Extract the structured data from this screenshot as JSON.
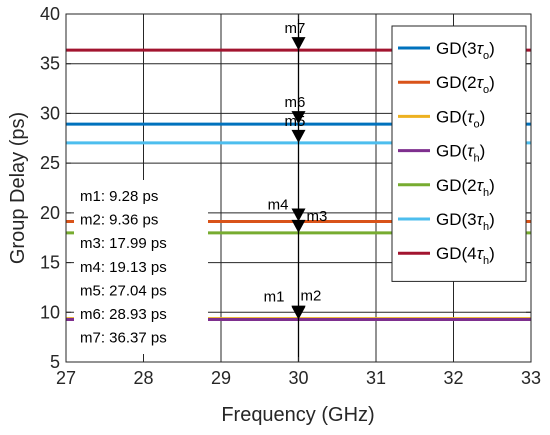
{
  "chart_data": {
    "type": "line",
    "xlabel": "Frequency (GHz)",
    "ylabel": "Group Delay (ps)",
    "xlim": [
      27,
      33
    ],
    "ylim": [
      5,
      40
    ],
    "xticks": [
      27,
      28,
      29,
      30,
      31,
      32,
      33
    ],
    "yticks": [
      5,
      10,
      15,
      20,
      25,
      30,
      35,
      40
    ],
    "grid": true,
    "legend_position": "top-right",
    "series": [
      {
        "name_main": "GD(3",
        "name_sym": "τ",
        "name_sub": "o",
        "name_end": ")",
        "color": "#0072BD",
        "x": [
          27,
          33
        ],
        "values": [
          28.93,
          28.93
        ]
      },
      {
        "name_main": "GD(2",
        "name_sym": "τ",
        "name_sub": "o",
        "name_end": ")",
        "color": "#D95319",
        "x": [
          27,
          33
        ],
        "values": [
          19.13,
          19.13
        ]
      },
      {
        "name_main": "GD(",
        "name_sym": "τ",
        "name_sub": "o",
        "name_end": ")",
        "color": "#EDB120",
        "x": [
          27,
          33
        ],
        "values": [
          9.36,
          9.36
        ]
      },
      {
        "name_main": "GD(",
        "name_sym": "τ",
        "name_sub": "h",
        "name_end": ")",
        "color": "#7E2F8E",
        "x": [
          27,
          33
        ],
        "values": [
          9.28,
          9.28
        ]
      },
      {
        "name_main": "GD(2",
        "name_sym": "τ",
        "name_sub": "h",
        "name_end": ")",
        "color": "#77AC30",
        "x": [
          27,
          33
        ],
        "values": [
          17.99,
          17.99
        ]
      },
      {
        "name_main": "GD(3",
        "name_sym": "τ",
        "name_sub": "h",
        "name_end": ")",
        "color": "#4DBEEE",
        "x": [
          27,
          33
        ],
        "values": [
          27.04,
          27.04
        ]
      },
      {
        "name_main": "GD(4",
        "name_sym": "τ",
        "name_sub": "h",
        "name_end": ")",
        "color": "#A2142F",
        "x": [
          27,
          33
        ],
        "values": [
          36.37,
          36.37
        ]
      }
    ],
    "vertical_line": {
      "x": 30,
      "color": "#000000"
    },
    "markers": [
      {
        "label": "m1",
        "x": 30,
        "y": 9.28
      },
      {
        "label": "m2",
        "x": 30,
        "y": 9.36
      },
      {
        "label": "m3",
        "x": 30,
        "y": 17.99
      },
      {
        "label": "m4",
        "x": 30,
        "y": 19.13
      },
      {
        "label": "m5",
        "x": 30,
        "y": 27.04
      },
      {
        "label": "m6",
        "x": 30,
        "y": 28.93
      },
      {
        "label": "m7",
        "x": 30,
        "y": 36.37
      }
    ],
    "marker_readouts": [
      "m1: 9.28 ps",
      "m2: 9.36 ps",
      "m3: 17.99 ps",
      "m4: 19.13 ps",
      "m5: 27.04 ps",
      "m6: 28.93 ps",
      "m7: 36.37 ps"
    ]
  }
}
